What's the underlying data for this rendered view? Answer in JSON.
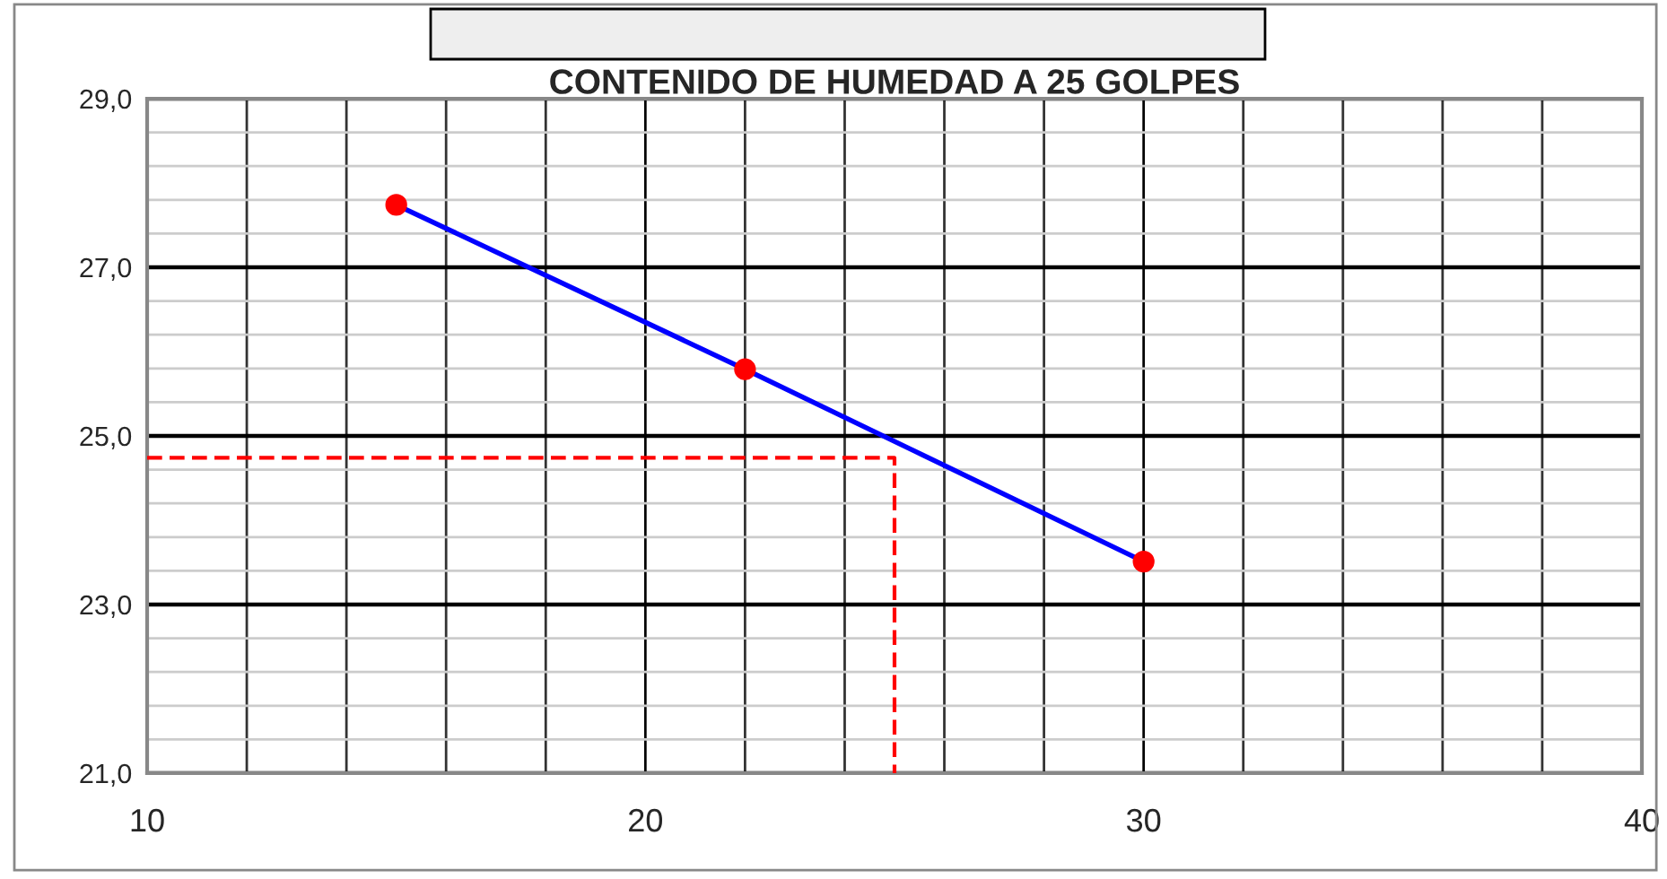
{
  "chart_data": {
    "type": "line",
    "title": "CONTENIDO DE HUMEDAD A 25 GOLPES",
    "xlim": [
      10,
      40
    ],
    "xticks": [
      10,
      {
        "value": 12,
        "label": null
      },
      {
        "value": 14,
        "label": null
      },
      {
        "value": 16,
        "label": null
      },
      {
        "value": 18,
        "label": null
      },
      20,
      {
        "value": 22,
        "label": null
      },
      {
        "value": 24,
        "label": null
      },
      {
        "value": 26,
        "label": null
      },
      {
        "value": 28,
        "label": null
      },
      30,
      {
        "value": 32,
        "label": null
      },
      {
        "value": 34,
        "label": null
      },
      {
        "value": 36,
        "label": null
      },
      {
        "value": 38,
        "label": null
      },
      40
    ],
    "ylim": [
      21,
      29
    ],
    "yticks": [
      {
        "value": 21,
        "label": "21,0"
      },
      {
        "value": 21.4,
        "label": null
      },
      {
        "value": 21.8,
        "label": null
      },
      {
        "value": 22.2,
        "label": null
      },
      {
        "value": 22.6,
        "label": null
      },
      {
        "value": 23,
        "label": "23,0"
      },
      {
        "value": 23.4,
        "label": null
      },
      {
        "value": 23.8,
        "label": null
      },
      {
        "value": 24.2,
        "label": null
      },
      {
        "value": 24.6,
        "label": null
      },
      {
        "value": 25,
        "label": "25,0"
      },
      {
        "value": 25.4,
        "label": null
      },
      {
        "value": 25.8,
        "label": null
      },
      {
        "value": 26.2,
        "label": null
      },
      {
        "value": 26.6,
        "label": null
      },
      {
        "value": 27,
        "label": "27,0"
      },
      {
        "value": 27.4,
        "label": null
      },
      {
        "value": 27.8,
        "label": null
      },
      {
        "value": 28.2,
        "label": null
      },
      {
        "value": 28.6,
        "label": null
      },
      {
        "value": 29,
        "label": "29,0"
      }
    ],
    "grid": true,
    "series": [
      {
        "x": [
          15,
          22,
          30
        ],
        "values": [
          27.74,
          25.79,
          23.51
        ],
        "color": "#0000ff",
        "colors": [
          "#ff0000",
          "#ff0000",
          "#ff0000"
        ],
        "marker": "circle",
        "line_style": "solid"
      },
      {
        "x": [
          10,
          25,
          25
        ],
        "values": [
          24.74,
          24.74,
          21
        ],
        "color": "#ff0000",
        "marker": "none",
        "line_style": "dashed"
      }
    ]
  }
}
